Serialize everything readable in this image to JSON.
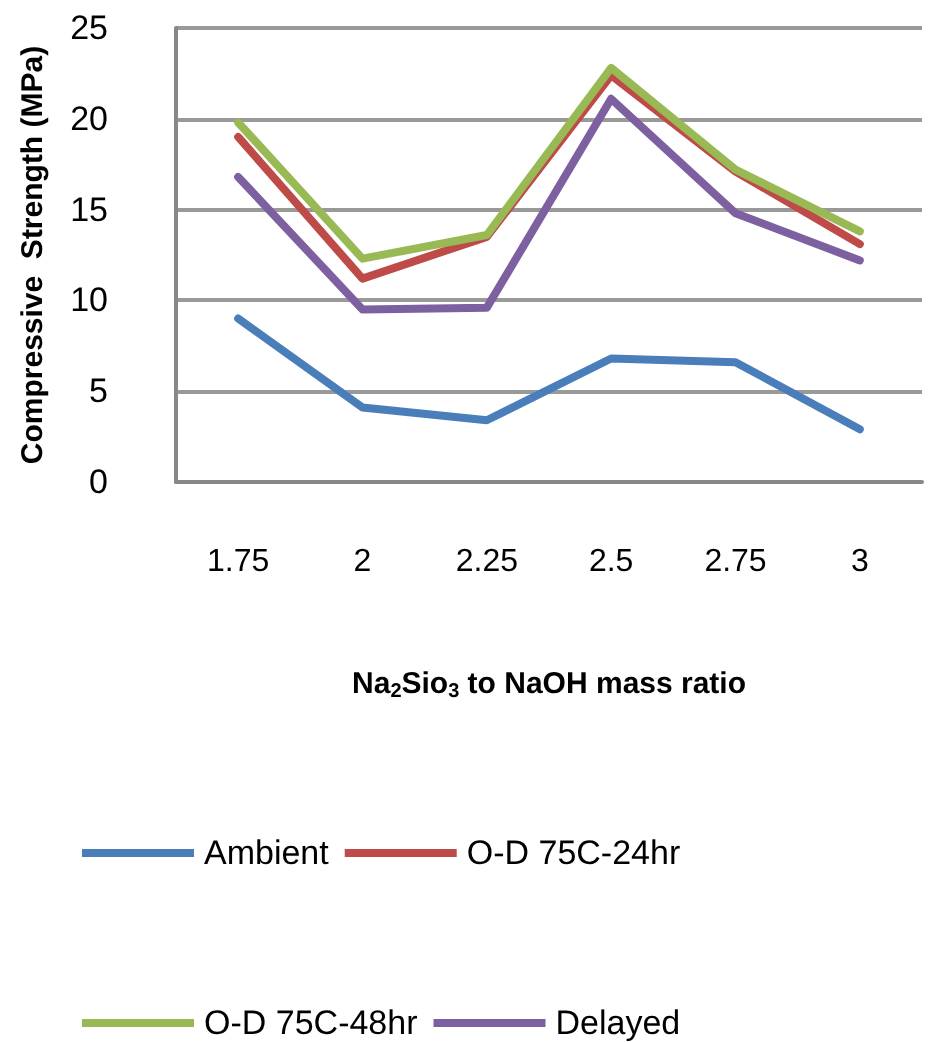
{
  "chart_data": {
    "type": "line",
    "xlabel": "Na$_{2}$Sio$_{3}$ to NaOH mass ratio",
    "ylabel": "Compressive  Strength (MPa)",
    "categories": [
      "1.75",
      "2",
      "2.25",
      "2.5",
      "2.75",
      "3"
    ],
    "series": [
      {
        "name": "Ambient",
        "color": "#4a7ebb",
        "values": [
          9.0,
          4.1,
          3.4,
          6.8,
          6.6,
          2.9
        ]
      },
      {
        "name": "O-D 75C-24hr",
        "color": "#be4b48",
        "values": [
          19.0,
          11.2,
          13.5,
          22.4,
          17.1,
          13.1
        ]
      },
      {
        "name": "O-D 75C-48hr",
        "color": "#98b954",
        "values": [
          19.8,
          12.3,
          13.6,
          22.8,
          17.2,
          13.8
        ]
      },
      {
        "name": "Delayed",
        "color": "#7d60a0",
        "values": [
          16.8,
          9.5,
          9.6,
          21.1,
          14.8,
          12.2
        ]
      }
    ],
    "ylim": [
      0,
      25
    ],
    "yticks": [
      0,
      5,
      10,
      15,
      20,
      25
    ],
    "grid": "y",
    "legend": "bottom",
    "marker": "none",
    "line_style": "solid"
  }
}
